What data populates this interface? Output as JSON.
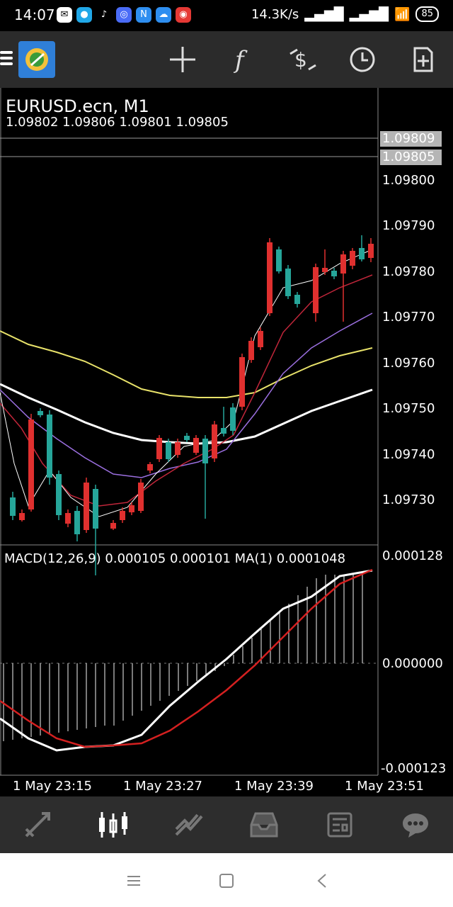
{
  "status_bar": {
    "time": "14:07",
    "net_speed": "14.3K/s",
    "battery": "85"
  },
  "toolbar": {
    "icons": [
      "menu-icon",
      "app-logo",
      "crosshair-icon",
      "indicator-f-icon",
      "trade-icon",
      "clock-icon",
      "add-document-icon"
    ]
  },
  "chart": {
    "title": "EURUSD.ecn, M1",
    "ohlc": "1.09802 1.09806 1.09801 1.09805",
    "price_tags": [
      "1.09809",
      "1.09805"
    ],
    "price_labels": [
      "1.09800",
      "1.09790",
      "1.09780",
      "1.09770",
      "1.09760",
      "1.09750",
      "1.09740",
      "1.09730"
    ],
    "macd_label": "MACD(12,26,9) 0.000105 0.000101 MA(1) 0.0001048",
    "macd_labels": [
      "0.000128",
      "0.000000",
      "-0.000123"
    ],
    "time_labels": [
      "1 May 23:15",
      "1 May 23:27",
      "1 May 23:39",
      "1 May 23:51"
    ],
    "colors": {
      "bull": "#26a69a",
      "bear": "#e0302f",
      "ma_yellow": "#e8e26a",
      "ma_white": "#ffffff",
      "ma_purple": "#9b6fe0",
      "ma_red": "#c0263a",
      "macd_signal": "#d42020"
    }
  },
  "bottom_nav": {
    "items": [
      "quotes-icon",
      "chart-icon",
      "trade-icon",
      "history-icon",
      "news-icon",
      "chat-icon"
    ],
    "active": "chart-icon"
  }
}
